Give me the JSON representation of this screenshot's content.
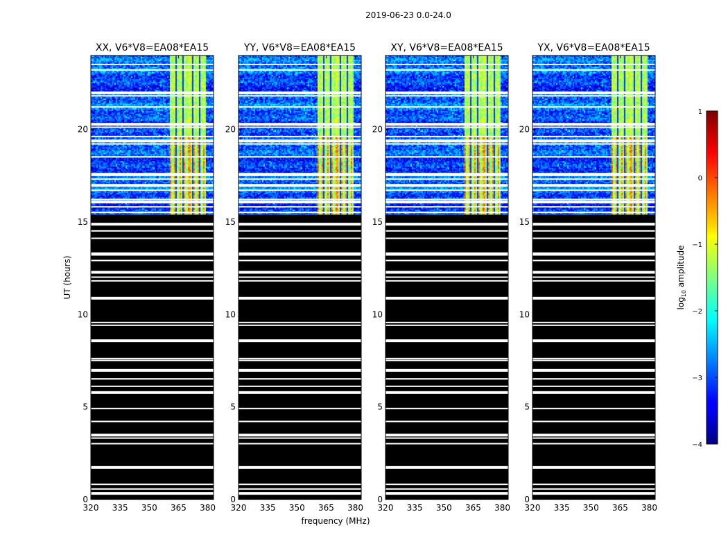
{
  "chart_data": {
    "type": "heatmap",
    "suptitle": "2019-06-23 0.0-24.0",
    "xlabel": "frequency (MHz)",
    "ylabel": "UT (hours)",
    "xlim": [
      320,
      383
    ],
    "ylim": [
      0,
      24
    ],
    "x_ticks": [
      320,
      335,
      350,
      365,
      380
    ],
    "y_ticks": [
      0,
      5,
      10,
      15,
      20
    ],
    "panels": [
      {
        "title": "XX, V6*V8=EA08*EA15"
      },
      {
        "title": "YY, V6*V8=EA08*EA15"
      },
      {
        "title": "XY, V6*V8=EA08*EA15"
      },
      {
        "title": "YX, V6*V8=EA08*EA15"
      }
    ],
    "colorbar": {
      "label": "log10 amplitude",
      "label_base": "log",
      "label_sub": "10",
      "label_rest": " amplitude",
      "range": [
        -4,
        1
      ],
      "ticks": [
        "1",
        "0",
        "−1",
        "−2",
        "−3",
        "−4"
      ],
      "colormap": "jet"
    },
    "observations": {
      "data_start_hour": 15.4,
      "data_end_hour": 24.0,
      "rfi_band_mhz": [
        360,
        379
      ],
      "gap_hours": [
        0.35,
        0.55,
        0.8,
        1.75,
        3.0,
        3.3,
        3.5,
        4.2,
        4.9,
        5.8,
        6.1,
        6.5,
        7.0,
        7.5,
        7.6,
        8.6,
        9.4,
        9.55,
        10.9,
        11.8,
        12.0,
        12.3,
        12.9,
        13.2,
        13.3,
        14.1,
        14.5,
        14.9,
        15.5,
        15.8,
        16.1,
        16.2,
        16.7,
        17.0,
        17.3,
        17.5,
        17.6,
        18.5,
        19.2,
        19.4,
        19.6,
        20.1,
        20.3,
        21.2,
        21.8,
        22.0,
        23.2,
        23.5
      ]
    }
  }
}
